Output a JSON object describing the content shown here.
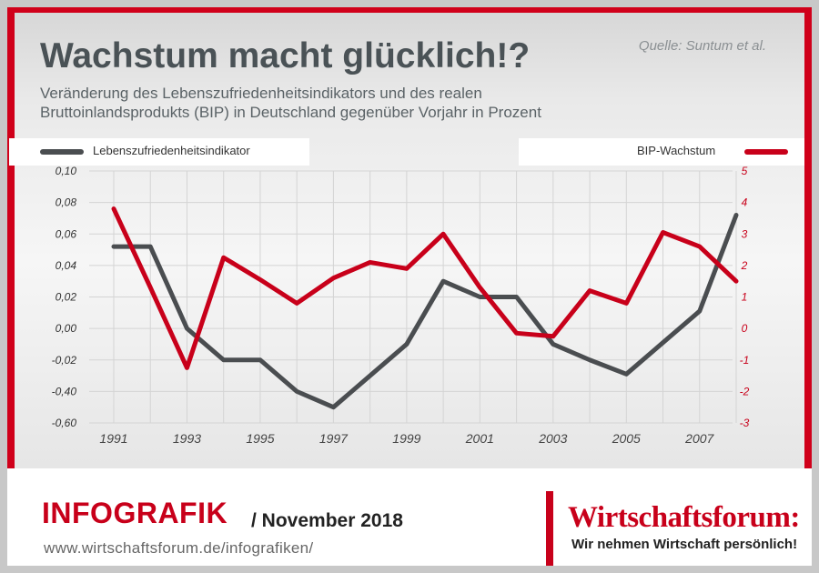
{
  "header": {
    "title": "Wachstum macht glücklich!?",
    "source": "Quelle: Suntum et al.",
    "subtitle": "Veränderung des Lebenszufriedenheitsindikators und des realen Bruttoinlandsprodukts (BIP) in Deutschland gegenüber Vorjahr in Prozent"
  },
  "chart_data": {
    "type": "line",
    "x": [
      1991,
      1992,
      1993,
      1994,
      1995,
      1996,
      1997,
      1998,
      1999,
      2000,
      2001,
      2002,
      2003,
      2004,
      2005,
      2006,
      2007,
      2008
    ],
    "x_tick_labels": [
      "1991",
      "1993",
      "1995",
      "1997",
      "1999",
      "2001",
      "2003",
      "2005",
      "2007"
    ],
    "y_left_tick_labels": [
      "0,10",
      "0,08",
      "0,06",
      "0,04",
      "0,02",
      "0,00",
      "-0,02",
      "-0,40",
      "-0,60"
    ],
    "y_right_tick_labels": [
      "5",
      "4",
      "3",
      "2",
      "1",
      "0",
      "-1",
      "-2",
      "-3"
    ],
    "ylim_right": [
      -3,
      5
    ],
    "series": [
      {
        "name": "Lebenszufriedenheitsindikator",
        "axis": "left",
        "color": "#4a4d50",
        "values_right_scale": [
          2.6,
          2.6,
          0.0,
          -1.0,
          -1.0,
          -2.0,
          -2.5,
          -1.5,
          -0.5,
          1.5,
          1.0,
          1.0,
          -0.5,
          -1.0,
          -1.45,
          -0.45,
          0.55,
          3.6
        ]
      },
      {
        "name": "BIP-Wachstum",
        "axis": "right",
        "color": "#c8001a",
        "values": [
          3.8,
          1.3,
          -1.25,
          2.25,
          1.55,
          0.8,
          1.6,
          2.1,
          1.9,
          3.0,
          1.3,
          -0.15,
          -0.25,
          1.2,
          0.8,
          3.05,
          2.6,
          1.5
        ]
      }
    ]
  },
  "footer": {
    "infografik": "INFOGRAFIK",
    "date": "/ November 2018",
    "url": "www.wirtschaftsforum.de/infografiken/",
    "logo_name": "Wirtschaftsforum:",
    "logo_tagline": "Wir nehmen Wirtschaft persönlich!"
  }
}
